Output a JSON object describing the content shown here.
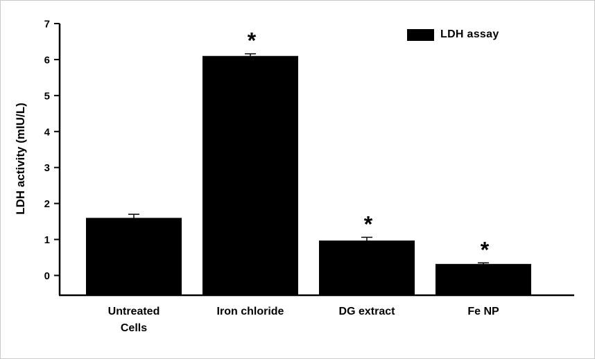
{
  "chart_data": {
    "type": "bar",
    "title": "",
    "categories": [
      "Untreated\nCells",
      "Iron chloride",
      "DG extract",
      "Fe NP"
    ],
    "values": [
      1.6,
      6.1,
      0.97,
      0.32
    ],
    "errors": [
      0.1,
      0.06,
      0.09,
      0.03
    ],
    "significance": [
      "",
      "*",
      "*",
      "*"
    ],
    "xlabel": "",
    "ylabel": "LDH activity (mIU/L)",
    "ylim": [
      -0.55,
      7
    ],
    "yticks": [
      0,
      1,
      2,
      3,
      4,
      5,
      6,
      7
    ],
    "legend": {
      "label": "LDH assay",
      "position": "top-right"
    },
    "bar_color": "#000000",
    "axis_color": "#000000",
    "grid": false
  }
}
